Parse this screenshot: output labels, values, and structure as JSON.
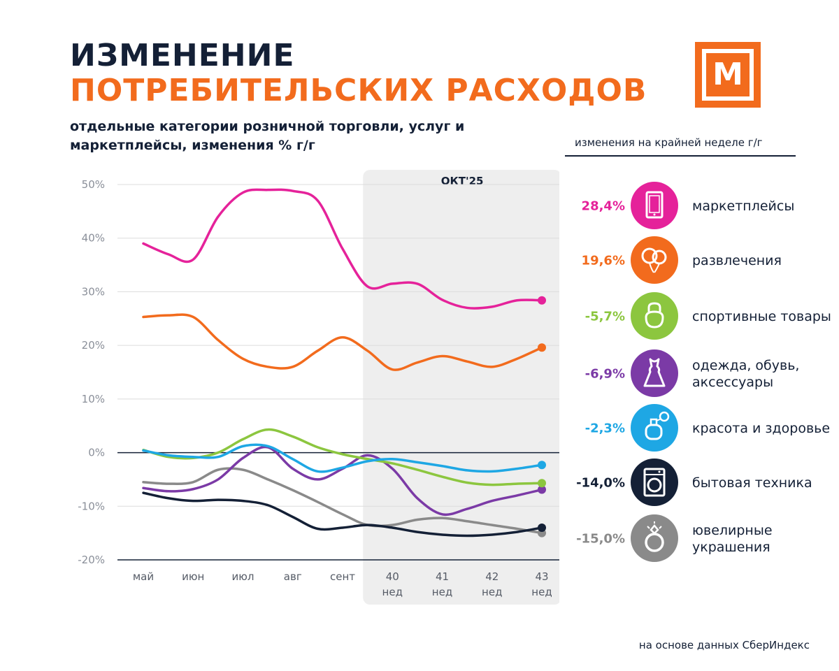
{
  "header": {
    "title_line1": "ИЗМЕНЕНИЕ",
    "title_line2": "ПОТРЕБИТЕЛЬСКИХ РАСХОДОВ",
    "subtitle": "отдельные категории розничной торговли, услуг  и маркетплейсы, изменения % г/г",
    "logo_letter": "М"
  },
  "legend": {
    "heading": "изменения на крайней неделе г/г",
    "items": [
      {
        "value": "28,4%",
        "label": "маркетплейсы",
        "color": "#e5229a",
        "icon": "tablet-icon"
      },
      {
        "value": "19,6%",
        "label": "развлечения",
        "color": "#f26b1d",
        "icon": "balloons-icon"
      },
      {
        "value": "-5,7%",
        "label": "спортивные товары",
        "color": "#8cc63f",
        "icon": "kettlebell-icon"
      },
      {
        "value": "-6,9%",
        "label": "одежда, обувь, аксессуары",
        "color": "#7b3aa6",
        "icon": "dress-icon"
      },
      {
        "value": "-2,3%",
        "label": "красота и здоровье",
        "color": "#1ea7e4",
        "icon": "perfume-icon"
      },
      {
        "value": "-14,0%",
        "label": "бытовая техника",
        "color": "#142036",
        "icon": "washing-machine-icon"
      },
      {
        "value": "-15,0%",
        "label": "ювелирные украшения",
        "color": "#8a8a8a",
        "icon": "ring-icon"
      }
    ]
  },
  "source": "на основе данных СберИндекс",
  "chart_data": {
    "type": "line",
    "title": "ИЗМЕНЕНИЕ ПОТРЕБИТЕЛЬСКИХ РАСХОДОВ",
    "xlabel": "",
    "ylabel": "изменения % г/г",
    "ylim": [
      -20,
      50
    ],
    "yticks": [
      50,
      40,
      30,
      20,
      10,
      0,
      -10,
      -20
    ],
    "ytick_labels": [
      "50%",
      "40%",
      "30%",
      "20%",
      "10%",
      "0%",
      "-10%",
      "-20%"
    ],
    "categories": [
      "май",
      "июн",
      "июл",
      "авг",
      "сент",
      "40 нед",
      "41 нед",
      "42 нед",
      "43 нед"
    ],
    "x": [
      0,
      0.5,
      1,
      1.5,
      2,
      2.5,
      3,
      3.5,
      4,
      4.5,
      5,
      5.5,
      6,
      6.5,
      7,
      7.5,
      8
    ],
    "highlight": {
      "label": "ОКТ'25",
      "from_category": "40 нед",
      "to_category": "43 нед"
    },
    "series": [
      {
        "name": "маркетплейсы",
        "color": "#e5229a",
        "values": [
          39,
          37,
          36,
          44,
          48.5,
          49,
          48.8,
          47,
          38,
          31,
          31.5,
          31.5,
          28.5,
          27,
          27.2,
          28.4,
          28.4
        ]
      },
      {
        "name": "развлечения",
        "color": "#f26b1d",
        "values": [
          25.3,
          25.6,
          25.3,
          21,
          17.5,
          16,
          16,
          19,
          21.5,
          19,
          15.5,
          16.8,
          18,
          17,
          16,
          17.5,
          19.6
        ]
      },
      {
        "name": "спортивные товары",
        "color": "#8cc63f",
        "values": [
          0.5,
          -0.8,
          -1,
          0,
          2.5,
          4.3,
          3,
          1,
          -0.3,
          -1.2,
          -2,
          -3.2,
          -4.5,
          -5.6,
          -6,
          -5.8,
          -5.7
        ]
      },
      {
        "name": "одежда, обувь, аксессуары",
        "color": "#7b3aa6",
        "values": [
          -6.6,
          -7.2,
          -6.8,
          -5,
          -1,
          1,
          -3,
          -5,
          -3,
          -0.5,
          -3,
          -8.5,
          -11.5,
          -10.5,
          -9,
          -8,
          -6.9
        ]
      },
      {
        "name": "красота и здоровье",
        "color": "#1ea7e4",
        "values": [
          0.4,
          -0.5,
          -0.8,
          -0.8,
          1.2,
          1.2,
          -1.2,
          -3.5,
          -2.8,
          -1.6,
          -1.2,
          -1.8,
          -2.5,
          -3.3,
          -3.5,
          -3,
          -2.3
        ]
      },
      {
        "name": "бытовая техника",
        "color": "#142036",
        "values": [
          -7.5,
          -8.5,
          -9,
          -8.8,
          -9,
          -9.8,
          -12,
          -14.2,
          -14,
          -13.5,
          -14,
          -14.8,
          -15.3,
          -15.5,
          -15.3,
          -14.8,
          -14.0
        ]
      },
      {
        "name": "ювелирные украшения",
        "color": "#8a8a8a",
        "values": [
          -5.5,
          -5.8,
          -5.5,
          -3.2,
          -3.2,
          -5,
          -7,
          -9.2,
          -11.5,
          -13.5,
          -13.5,
          -12.5,
          -12.2,
          -12.8,
          -13.5,
          -14.2,
          -15.0
        ]
      }
    ]
  }
}
